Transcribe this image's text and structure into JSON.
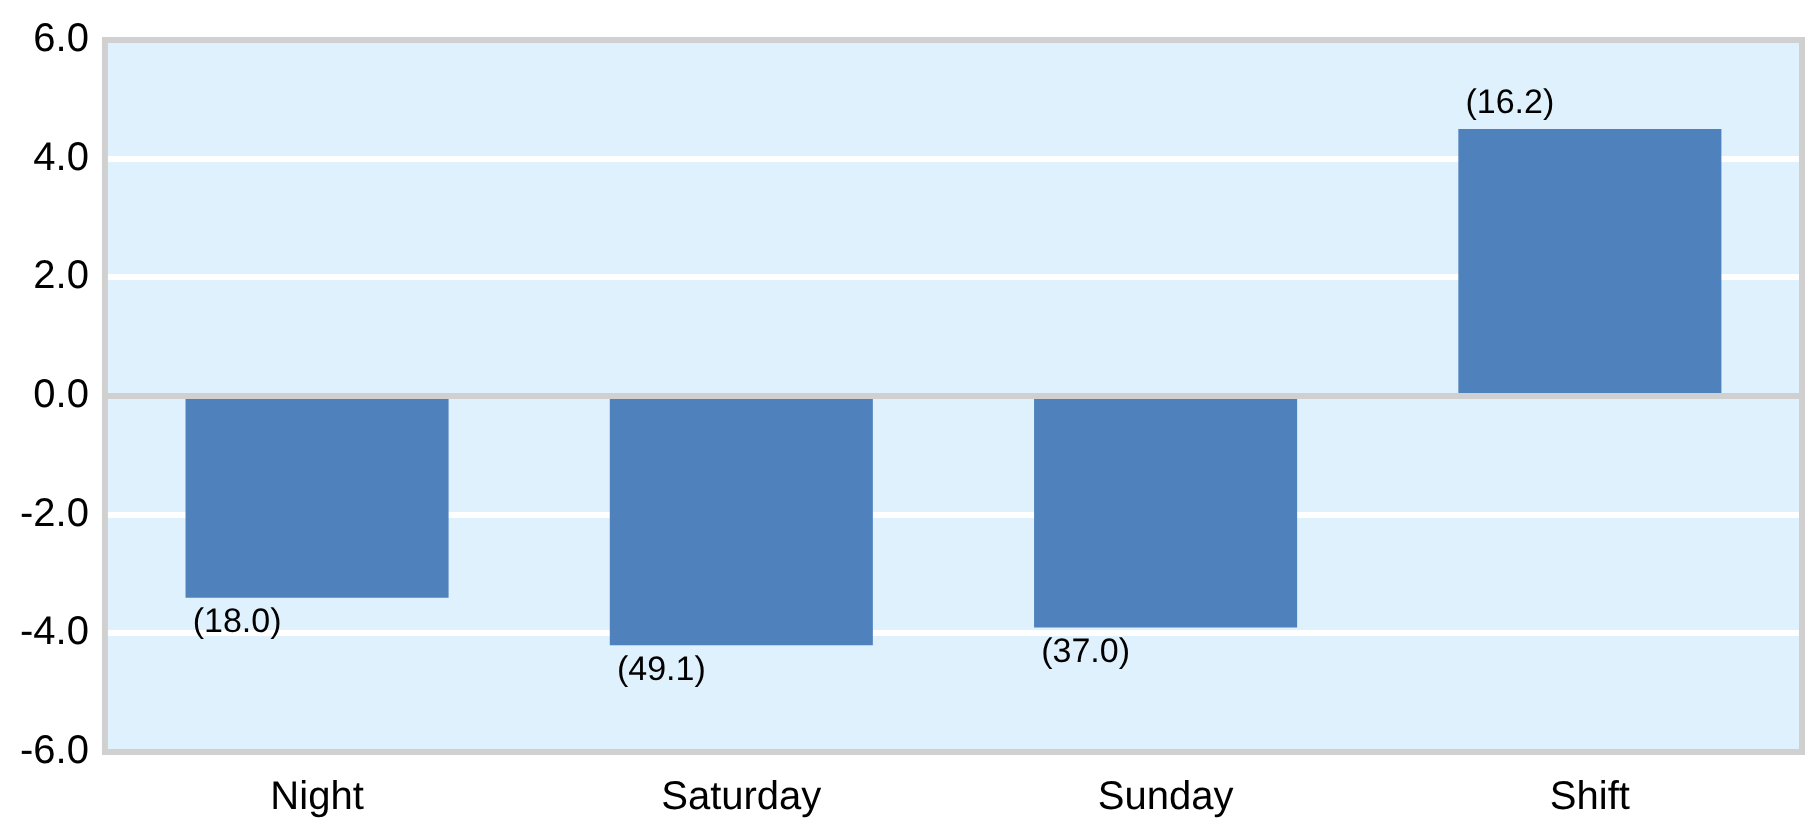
{
  "chart_data": {
    "type": "bar",
    "categories": [
      "Night",
      "Saturday",
      "Sunday",
      "Shift"
    ],
    "values": [
      -3.4,
      -4.2,
      -3.9,
      4.5
    ],
    "annotations": [
      {
        "text": "(18.0)",
        "x": "Night",
        "y": -3.4
      },
      {
        "text": "(49.1)",
        "x": "Saturday",
        "y": -4.2
      },
      {
        "text": "(37.0)",
        "x": "Sunday",
        "y": -3.9
      },
      {
        "text": "(16.2)",
        "x": "Shift",
        "y": 4.5
      }
    ],
    "color": "#4f81bd",
    "ylim": [
      -6,
      6
    ],
    "yticks": [
      {
        "value": -6,
        "label": "-6.0"
      },
      {
        "value": -4,
        "label": "-4.0"
      },
      {
        "value": -2,
        "label": "-2.0"
      },
      {
        "value": 0,
        "label": "0.0"
      },
      {
        "value": 2,
        "label": "2.0"
      },
      {
        "value": 4,
        "label": "4.0"
      },
      {
        "value": 6,
        "label": "6.0"
      }
    ],
    "grid": "y",
    "legend": false
  }
}
